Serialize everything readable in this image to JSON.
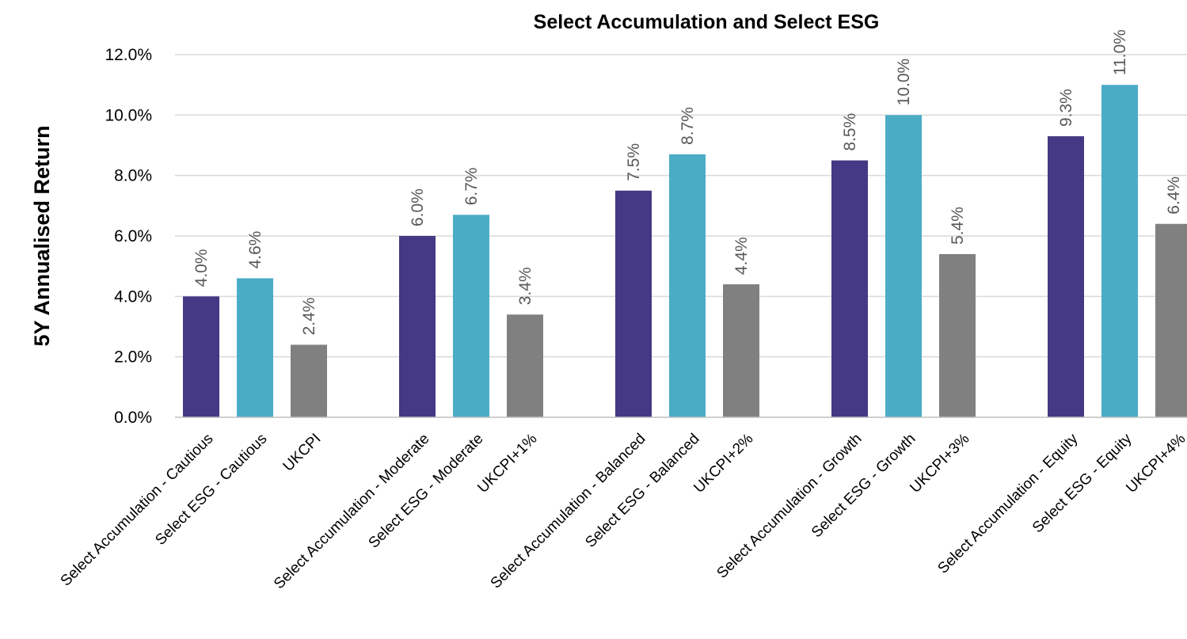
{
  "chart_data": {
    "type": "bar",
    "title": "Select Accumulation and Select ESG",
    "ylabel": "5Y Annualised Return",
    "xlabel": "",
    "ylim": [
      0,
      12
    ],
    "yticks": [
      "0.0%",
      "2.0%",
      "4.0%",
      "6.0%",
      "8.0%",
      "10.0%",
      "12.0%"
    ],
    "grid": true,
    "legend": "none",
    "colors": {
      "accumulation": "#453884",
      "esg": "#4bacc6",
      "benchmark": "#808080"
    },
    "bars": [
      {
        "label": "Select Accumulation - Cautious",
        "value": 4.0,
        "value_label": "4.0%",
        "kind": "accumulation"
      },
      {
        "label": "Select ESG - Cautious",
        "value": 4.6,
        "value_label": "4.6%",
        "kind": "esg"
      },
      {
        "label": "UKCPI",
        "value": 2.4,
        "value_label": "2.4%",
        "kind": "benchmark"
      },
      {
        "label": "Select Accumulation - Moderate",
        "value": 6.0,
        "value_label": "6.0%",
        "kind": "accumulation"
      },
      {
        "label": "Select ESG - Moderate",
        "value": 6.7,
        "value_label": "6.7%",
        "kind": "esg"
      },
      {
        "label": "UKCPI+1%",
        "value": 3.4,
        "value_label": "3.4%",
        "kind": "benchmark"
      },
      {
        "label": "Select Accumulation - Balanced",
        "value": 7.5,
        "value_label": "7.5%",
        "kind": "accumulation"
      },
      {
        "label": "Select ESG - Balanced",
        "value": 8.7,
        "value_label": "8.7%",
        "kind": "esg"
      },
      {
        "label": "UKCPI+2%",
        "value": 4.4,
        "value_label": "4.4%",
        "kind": "benchmark"
      },
      {
        "label": "Select Accumulation - Growth",
        "value": 8.5,
        "value_label": "8.5%",
        "kind": "accumulation"
      },
      {
        "label": "Select ESG - Growth",
        "value": 10.0,
        "value_label": "10.0%",
        "kind": "esg"
      },
      {
        "label": "UKCPI+3%",
        "value": 5.4,
        "value_label": "5.4%",
        "kind": "benchmark"
      },
      {
        "label": "Select Accumulation - Equity",
        "value": 9.3,
        "value_label": "9.3%",
        "kind": "accumulation"
      },
      {
        "label": "Select ESG - Equity",
        "value": 11.0,
        "value_label": "11.0%",
        "kind": "esg"
      },
      {
        "label": "UKCPI+4%",
        "value": 6.4,
        "value_label": "6.4%",
        "kind": "benchmark"
      }
    ]
  }
}
